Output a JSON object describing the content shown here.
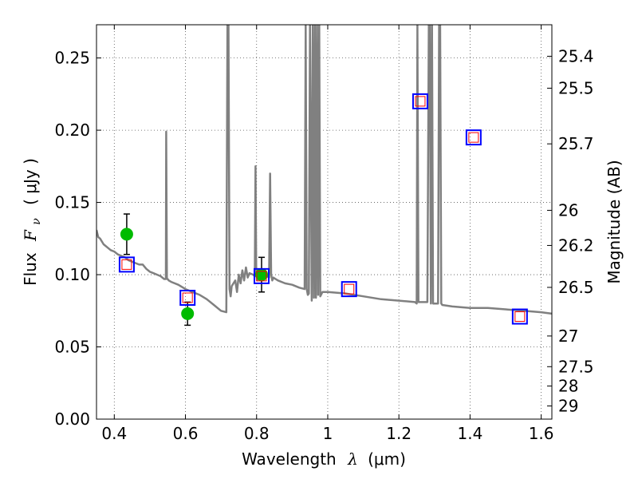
{
  "chart_data": {
    "type": "scatter",
    "xlabel": "Wavelength",
    "xlabel_symbol": "λ",
    "xlabel_unit": "(μm)",
    "ylabel": "Flux",
    "ylabel_symbol": "F",
    "ylabel_subscript": "ν",
    "ylabel_unit": "( μJy )",
    "ylabel_right": "Magnitude (AB)",
    "xlim": [
      0.35,
      1.63
    ],
    "ylim": [
      0.0,
      0.273
    ],
    "grid": true,
    "x_ticks": [
      0.4,
      0.6,
      0.8,
      1.0,
      1.2,
      1.4,
      1.6
    ],
    "x_tick_labels": [
      "0.4",
      "0.6",
      "0.8",
      "1",
      "1.2",
      "1.4",
      "1.6"
    ],
    "y_ticks": [
      0.0,
      0.05,
      0.1,
      0.15,
      0.2,
      0.25
    ],
    "y_tick_labels": [
      "0.00",
      "0.05",
      "0.10",
      "0.15",
      "0.20",
      "0.25"
    ],
    "mag_ticks": [
      25.4,
      25.5,
      25.7,
      26,
      26.2,
      26.5,
      27,
      27.5,
      28,
      29
    ],
    "mag_tick_labels": [
      "25.4",
      "25.5",
      "25.7",
      "26",
      "26.2",
      "26.5",
      "27",
      "27.5",
      "28",
      "29"
    ],
    "colors": {
      "spectrum": "#808080",
      "observed": "#00bb00",
      "model_box": "#0000ff",
      "model_inner": "#ff0000",
      "errorbar": "#000000",
      "grid": "#555555"
    },
    "series": [
      {
        "name": "observed_photometry",
        "kind": "points_with_errors",
        "x": [
          0.435,
          0.606,
          0.814
        ],
        "y": [
          0.128,
          0.073,
          0.1
        ],
        "yerr": [
          0.014,
          0.008,
          0.012
        ]
      },
      {
        "name": "model_photometry",
        "kind": "open_squares",
        "x": [
          0.435,
          0.606,
          0.814,
          1.06,
          1.26,
          1.41,
          1.54
        ],
        "y": [
          0.107,
          0.084,
          0.099,
          0.09,
          0.22,
          0.195,
          0.071
        ]
      },
      {
        "name": "model_spectrum",
        "kind": "line",
        "x": [
          0.35,
          0.355,
          0.36,
          0.37,
          0.38,
          0.39,
          0.4,
          0.41,
          0.42,
          0.43,
          0.44,
          0.45,
          0.46,
          0.47,
          0.48,
          0.49,
          0.5,
          0.51,
          0.52,
          0.53,
          0.54,
          0.545,
          0.546,
          0.548,
          0.55,
          0.553,
          0.56,
          0.58,
          0.6,
          0.62,
          0.64,
          0.66,
          0.68,
          0.7,
          0.715,
          0.718,
          0.721,
          0.724,
          0.727,
          0.73,
          0.74,
          0.745,
          0.75,
          0.755,
          0.76,
          0.765,
          0.77,
          0.775,
          0.78,
          0.79,
          0.795,
          0.797,
          0.799,
          0.801,
          0.805,
          0.82,
          0.835,
          0.838,
          0.841,
          0.844,
          0.847,
          0.86,
          0.88,
          0.9,
          0.92,
          0.935,
          0.938,
          0.941,
          0.944,
          0.947,
          0.95,
          0.955,
          0.958,
          0.961,
          0.964,
          0.967,
          0.97,
          0.973,
          0.976,
          0.979,
          0.985,
          1.0,
          1.05,
          1.1,
          1.15,
          1.2,
          1.245,
          1.25,
          1.252,
          1.255,
          1.28,
          1.284,
          1.287,
          1.29,
          1.293,
          1.296,
          1.3,
          1.31,
          1.313,
          1.316,
          1.319,
          1.322,
          1.35,
          1.4,
          1.45,
          1.5,
          1.55,
          1.6,
          1.63
        ],
        "y": [
          0.131,
          0.126,
          0.125,
          0.121,
          0.119,
          0.117,
          0.116,
          0.114,
          0.113,
          0.112,
          0.11,
          0.109,
          0.108,
          0.107,
          0.107,
          0.104,
          0.102,
          0.101,
          0.1,
          0.099,
          0.097,
          0.097,
          0.199,
          0.097,
          0.097,
          0.096,
          0.095,
          0.093,
          0.09,
          0.088,
          0.086,
          0.083,
          0.079,
          0.075,
          0.074,
          0.273,
          0.273,
          0.09,
          0.085,
          0.092,
          0.096,
          0.088,
          0.1,
          0.094,
          0.103,
          0.096,
          0.105,
          0.098,
          0.101,
          0.1,
          0.099,
          0.175,
          0.102,
          0.096,
          0.102,
          0.1,
          0.098,
          0.17,
          0.1,
          0.096,
          0.098,
          0.096,
          0.094,
          0.093,
          0.091,
          0.09,
          0.273,
          0.09,
          0.086,
          0.087,
          0.273,
          0.082,
          0.273,
          0.084,
          0.273,
          0.084,
          0.273,
          0.086,
          0.273,
          0.085,
          0.088,
          0.088,
          0.087,
          0.085,
          0.083,
          0.082,
          0.081,
          0.08,
          0.273,
          0.081,
          0.081,
          0.273,
          0.273,
          0.08,
          0.273,
          0.08,
          0.08,
          0.08,
          0.273,
          0.273,
          0.08,
          0.079,
          0.078,
          0.077,
          0.077,
          0.076,
          0.075,
          0.074,
          0.073
        ]
      }
    ]
  }
}
